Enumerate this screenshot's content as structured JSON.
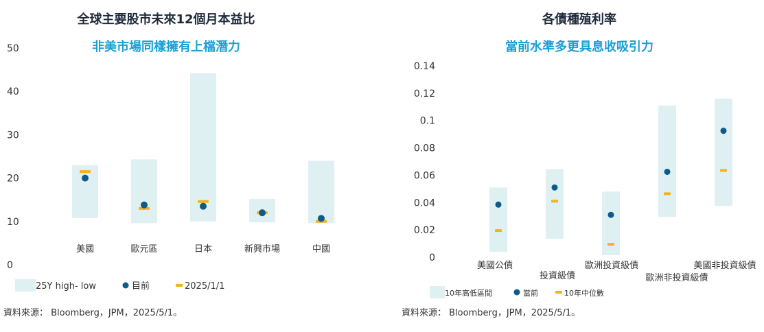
{
  "colors": {
    "range_fill": "#dff0f3",
    "current_dot": "#0e5a8a",
    "marker": "#f5b21c",
    "title": "#1f2a3c",
    "subtitle": "#1aa0d4"
  },
  "chart_data": [
    {
      "type": "range-dot",
      "title": "全球主要股市未來12個月本益比",
      "subtitle": "非美市場同樣擁有上檔潛力",
      "categories": [
        "美國",
        "歐元區",
        "日本",
        "新興市場",
        "中國"
      ],
      "ylim": [
        0,
        50
      ],
      "yticks": [
        "50",
        "40",
        "30",
        "20",
        "10",
        "0"
      ],
      "series": [
        {
          "name": "25Y high- low",
          "kind": "range",
          "low": [
            10.8,
            9.6,
            10.0,
            9.8,
            9.6
          ],
          "high": [
            23.0,
            24.3,
            44.2,
            15.2,
            24.0
          ]
        },
        {
          "name": "目前",
          "kind": "dot",
          "values": [
            20.0,
            13.8,
            13.5,
            12.0,
            10.7
          ]
        },
        {
          "name": "2025/1/1",
          "kind": "marker",
          "values": [
            21.5,
            13.0,
            14.6,
            12.0,
            10.0
          ]
        }
      ],
      "legend_position": "bottom-left",
      "source": "資料來源： Bloomberg，JPM，2025/5/1。"
    },
    {
      "type": "range-dot",
      "title": "各債種殖利率",
      "subtitle": "當前水準多更具息收吸引力",
      "categories": [
        "美國公債",
        "投資級債",
        "歐洲投資級債",
        "歐洲非投資級債",
        "美國非投資級債"
      ],
      "ylim": [
        0,
        0.14
      ],
      "yticks": [
        "0.14",
        "0.12",
        "0.1",
        "0.08",
        "0.06",
        "0.04",
        "0.02",
        "0"
      ],
      "series": [
        {
          "name": "10年高低區間",
          "kind": "range",
          "low": [
            0.004,
            0.0135,
            0.0015,
            0.0295,
            0.0375
          ],
          "high": [
            0.051,
            0.0645,
            0.048,
            0.111,
            0.116
          ]
        },
        {
          "name": "當前",
          "kind": "dot",
          "values": [
            0.0385,
            0.051,
            0.031,
            0.0625,
            0.0925
          ]
        },
        {
          "name": "10年中位數",
          "kind": "marker",
          "values": [
            0.0195,
            0.041,
            0.0095,
            0.0465,
            0.0635
          ]
        }
      ],
      "legend_position": "bottom-left",
      "source": "資料來源： Bloomberg，JPM，2025/5/1。"
    }
  ]
}
